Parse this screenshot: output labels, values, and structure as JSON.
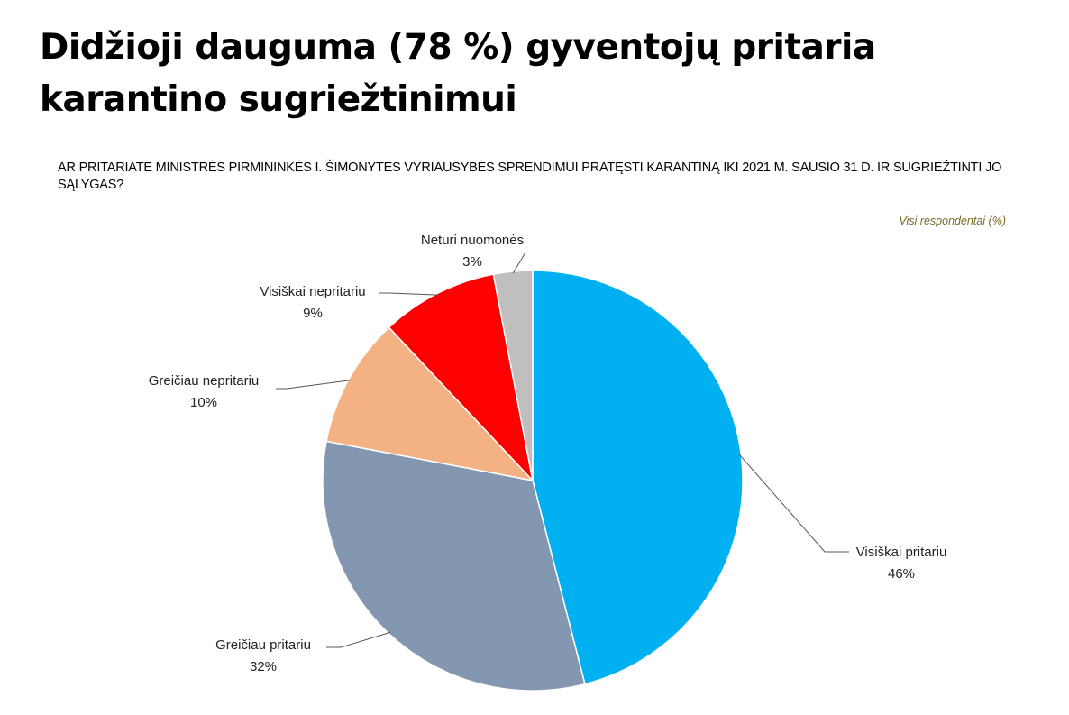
{
  "title": "Didžioji dauguma (78 %) gyventojų pritaria karantino sugriežtinimui",
  "question": "AR PRITARIATE MINISTRĖS PIRMININKĖS I. ŠIMONYTĖS VYRIAUSYBĖS SPRENDIMUI PRATĘSTI KARANTINĄ IKI 2021 M. SAUSIO 31 D. IR SUGRIEŽTINTI JO SĄLYGAS?",
  "source_note": "Visi respondentai (%)",
  "chart_data": {
    "type": "pie",
    "slices": [
      {
        "name": "Visiškai pritariu",
        "value": 46,
        "label": "46%",
        "color": "#00b0f0"
      },
      {
        "name": "Greičiau pritariu",
        "value": 32,
        "label": "32%",
        "color": "#8497b0"
      },
      {
        "name": "Greičiau nepritariu",
        "value": 10,
        "label": "10%",
        "color": "#f4b183"
      },
      {
        "name": "Visiškai nepritariu",
        "value": 9,
        "label": "9%",
        "color": "#ff0000"
      },
      {
        "name": "Neturi nuomonės",
        "value": 3,
        "label": "3%",
        "color": "#bfbfbf"
      }
    ]
  }
}
